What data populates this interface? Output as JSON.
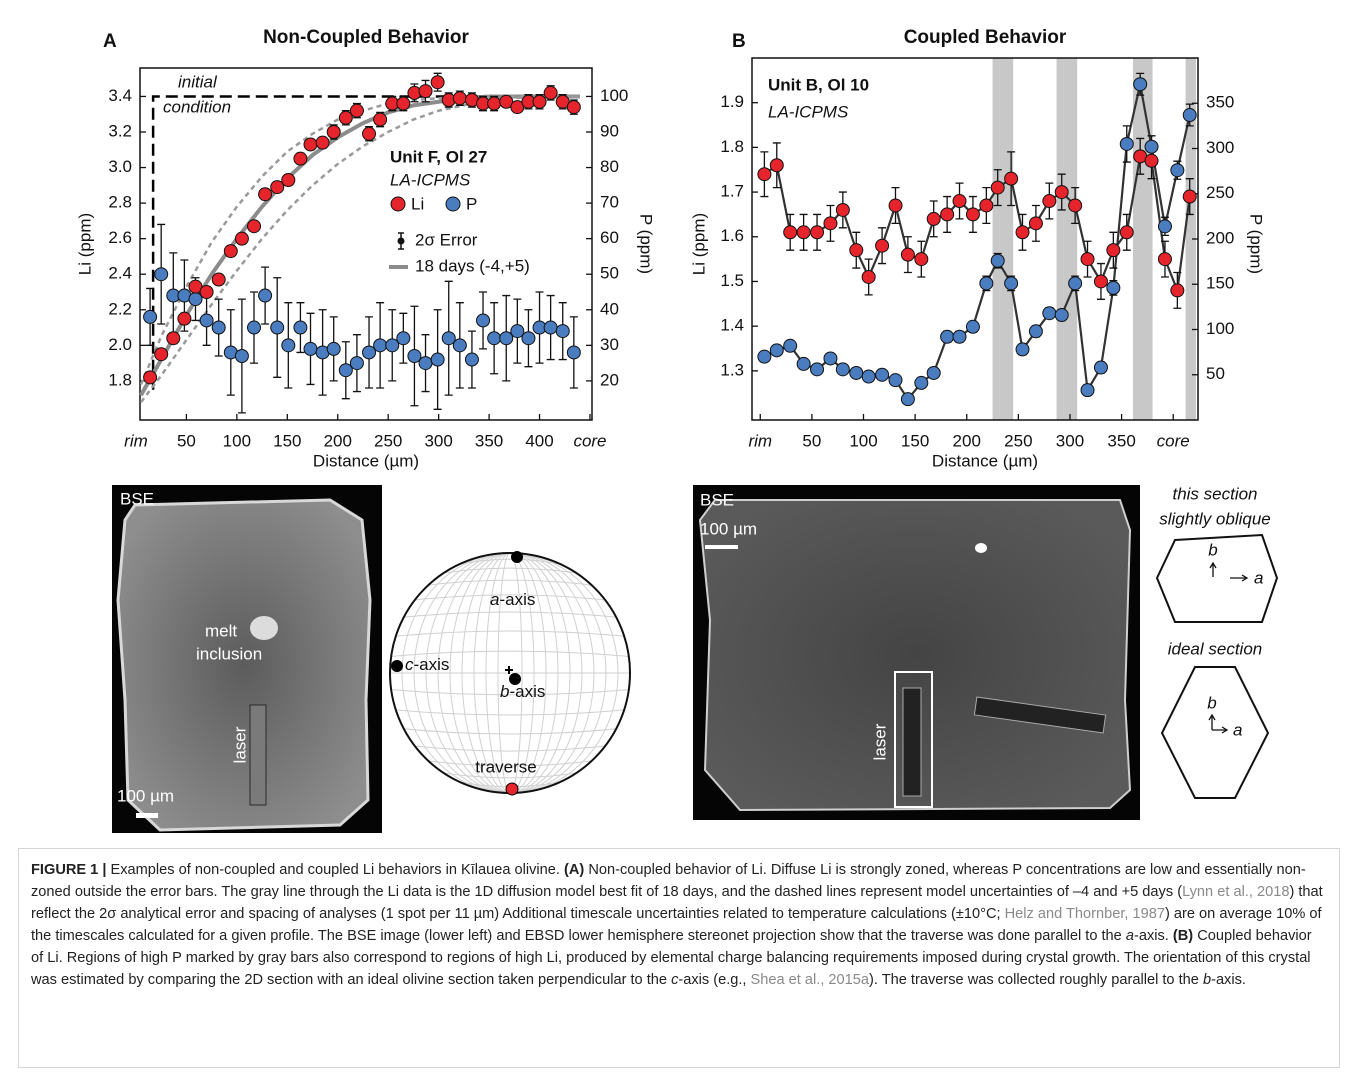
{
  "chart_data": [
    {
      "type": "scatter",
      "panel": "A",
      "title": "Non-Coupled Behavior",
      "xlabel": "Distance (µm)",
      "ylabel": "Li (ppm)",
      "y2label": "P (ppm)",
      "x": [
        14,
        25,
        37,
        48,
        59,
        70,
        82,
        94,
        105,
        117,
        128,
        140,
        151,
        163,
        173,
        185,
        196,
        208,
        219,
        231,
        242,
        254,
        265,
        276,
        287,
        299,
        310,
        321,
        333,
        344,
        355,
        367,
        378,
        389,
        400,
        411,
        423,
        434
      ],
      "xlim": [
        4,
        452
      ],
      "xticks": [
        {
          "value": 0,
          "label": "rim"
        },
        50,
        100,
        150,
        200,
        250,
        300,
        350,
        400,
        {
          "value": 450,
          "label": "core"
        }
      ],
      "ylim": [
        1.58,
        3.56
      ],
      "yticks": [
        1.8,
        {
          "value": 2,
          "label": "2.0"
        },
        2.2,
        2.4,
        2.6,
        2.8,
        {
          "value": 3,
          "label": "3.0"
        },
        3.2,
        3.4
      ],
      "y2lim": [
        9,
        108
      ],
      "y2ticks": [
        20,
        30,
        40,
        50,
        60,
        70,
        80,
        90,
        100
      ],
      "series": [
        {
          "name": "Li",
          "color": "#e5242b",
          "values": [
            1.82,
            1.95,
            2.04,
            2.15,
            2.33,
            2.3,
            2.37,
            2.53,
            2.6,
            2.67,
            2.85,
            2.89,
            2.93,
            3.05,
            3.13,
            3.14,
            3.2,
            3.28,
            3.32,
            3.19,
            3.27,
            3.36,
            3.36,
            3.42,
            3.43,
            3.48,
            3.38,
            3.39,
            3.38,
            3.36,
            3.36,
            3.37,
            3.34,
            3.37,
            3.37,
            3.42,
            3.37,
            3.34
          ],
          "errors": [
            0.02,
            0.02,
            0.03,
            0.03,
            0.02,
            0.02,
            0.02,
            0.03,
            0.03,
            0.02,
            0.03,
            0.03,
            0.03,
            0.03,
            0.03,
            0.03,
            0.04,
            0.04,
            0.04,
            0.04,
            0.04,
            0.04,
            0.04,
            0.05,
            0.06,
            0.05,
            0.04,
            0.04,
            0.04,
            0.04,
            0.04,
            0.03,
            0.03,
            0.04,
            0.04,
            0.04,
            0.04,
            0.04
          ]
        },
        {
          "name": "P",
          "color": "#4a7cc0",
          "axis": "y2",
          "values": [
            38,
            50,
            44,
            44,
            43,
            37,
            35,
            28,
            27,
            35,
            44,
            35,
            30,
            35,
            29,
            28,
            29,
            23,
            25,
            28,
            30,
            30,
            32,
            27,
            25,
            26,
            32,
            30,
            26,
            37,
            32,
            32,
            34,
            32,
            35,
            35,
            34,
            28
          ],
          "errors": [
            8,
            14,
            12,
            10,
            6,
            7,
            8,
            12,
            16,
            10,
            8,
            14,
            12,
            7,
            10,
            12,
            9,
            8,
            8,
            10,
            12,
            10,
            7,
            14,
            8,
            14,
            16,
            12,
            8,
            8,
            10,
            12,
            9,
            8,
            10,
            9,
            8,
            10
          ]
        }
      ],
      "annotations": [
        "Unit F, Ol 27",
        "LA-ICPMS"
      ],
      "legend": "right",
      "error_label": "2σ Error",
      "models": [
        {
          "name": "18 days (-4,+5)",
          "color": "#8c8c8c",
          "x": [
            5,
            25,
            50,
            75,
            100,
            125,
            150,
            175,
            200,
            225,
            250,
            275,
            300,
            325,
            350,
            400,
            440
          ],
          "values": [
            1.72,
            1.92,
            2.17,
            2.4,
            2.6,
            2.78,
            2.94,
            3.07,
            3.17,
            3.25,
            3.31,
            3.35,
            3.37,
            3.39,
            3.4,
            3.4,
            3.4
          ]
        },
        {
          "color": "#9a9a9a",
          "dash": true,
          "x": [
            5,
            25,
            50,
            75,
            100,
            125,
            150,
            175,
            200,
            225,
            250,
            275,
            300,
            325,
            350,
            400,
            440
          ],
          "values": [
            1.78,
            2.05,
            2.33,
            2.58,
            2.78,
            2.95,
            3.09,
            3.19,
            3.27,
            3.32,
            3.36,
            3.38,
            3.39,
            3.4,
            3.4,
            3.4,
            3.4
          ]
        },
        {
          "color": "#9a9a9a",
          "dash": true,
          "x": [
            5,
            25,
            50,
            75,
            100,
            125,
            150,
            175,
            200,
            225,
            250,
            275,
            300,
            325,
            350,
            400,
            440
          ],
          "values": [
            1.68,
            1.83,
            2.03,
            2.23,
            2.42,
            2.6,
            2.76,
            2.9,
            3.02,
            3.12,
            3.2,
            3.27,
            3.32,
            3.35,
            3.38,
            3.4,
            3.4
          ]
        }
      ],
      "initial_condition": {
        "label": [
          "initial",
          "condition"
        ],
        "color": "#000000",
        "x": [
          17,
          17,
          434
        ],
        "values": [
          1.75,
          3.4,
          3.4
        ]
      }
    },
    {
      "type": "line",
      "panel": "B",
      "title": "Coupled Behavior",
      "xlabel": "Distance (µm)",
      "ylabel": "Li (ppm)",
      "y2label": "P (ppm)",
      "x": [
        4,
        16,
        29,
        42,
        55,
        68,
        80,
        93,
        105,
        118,
        131,
        143,
        156,
        168,
        181,
        193,
        206,
        219,
        230,
        243,
        254,
        267,
        280,
        292,
        305,
        317,
        330,
        342,
        355,
        368,
        379,
        392,
        404,
        416
      ],
      "xlim": [
        -8,
        424
      ],
      "xticks": [
        {
          "value": 0,
          "label": "rim"
        },
        50,
        100,
        150,
        200,
        250,
        300,
        350,
        {
          "value": 400,
          "label": "core"
        }
      ],
      "ylim": [
        1.19,
        2.0
      ],
      "yticks": [
        1.3,
        1.4,
        1.5,
        1.6,
        1.7,
        1.8,
        1.9
      ],
      "y2lim": [
        0,
        400
      ],
      "y2ticks": [
        50,
        100,
        150,
        200,
        250,
        300,
        350
      ],
      "line_color": "#333333",
      "shaded_regions": [
        [
          225,
          245
        ],
        [
          287,
          307
        ],
        [
          361,
          380
        ],
        [
          412,
          422
        ]
      ],
      "shaded_color": "#c8c8c8",
      "series": [
        {
          "color": "#e5242b",
          "values": [
            1.74,
            1.76,
            1.61,
            1.61,
            1.61,
            1.63,
            1.66,
            1.57,
            1.51,
            1.58,
            1.67,
            1.56,
            1.55,
            1.64,
            1.65,
            1.68,
            1.65,
            1.67,
            1.71,
            1.73,
            1.61,
            1.63,
            1.68,
            1.7,
            1.67,
            1.55,
            1.5,
            1.57,
            1.61,
            1.78,
            1.77,
            1.55,
            1.48,
            1.69
          ],
          "errors": [
            0.05,
            0.05,
            0.04,
            0.04,
            0.04,
            0.04,
            0.04,
            0.04,
            0.04,
            0.04,
            0.04,
            0.04,
            0.04,
            0.04,
            0.04,
            0.04,
            0.04,
            0.04,
            0.04,
            0.06,
            0.04,
            0.04,
            0.04,
            0.04,
            0.04,
            0.04,
            0.04,
            0.04,
            0.04,
            0.04,
            0.04,
            0.04,
            0.04,
            0.04
          ]
        },
        {
          "color": "#4a7cc0",
          "axis": "y2",
          "values": [
            70,
            77,
            82,
            62,
            56,
            68,
            56,
            52,
            48,
            50,
            44,
            23,
            41,
            52,
            92,
            92,
            103,
            151,
            176,
            151,
            78,
            98,
            118,
            116,
            151,
            33,
            58,
            146,
            305,
            371,
            302,
            214,
            276,
            337
          ],
          "errors": [
            5,
            5,
            5,
            5,
            5,
            5,
            5,
            5,
            5,
            5,
            5,
            5,
            5,
            5,
            6,
            6,
            6,
            8,
            8,
            8,
            6,
            6,
            6,
            6,
            8,
            6,
            6,
            8,
            20,
            12,
            12,
            10,
            10,
            12
          ]
        }
      ],
      "annotations": [
        "Unit B, Ol 10",
        "LA-ICPMS"
      ]
    }
  ],
  "panel_a_image": {
    "label": "BSE",
    "inclusion": [
      "melt",
      "inclusion"
    ],
    "laser": "laser",
    "scale": "100 µm"
  },
  "stereonet": {
    "poles": [
      {
        "name": "a",
        "suffix": "-axis"
      },
      {
        "name": "c",
        "suffix": "-axis"
      },
      {
        "name": "b",
        "suffix": "-axis"
      }
    ],
    "traverse": "traverse"
  },
  "panel_b_image": {
    "label": "BSE",
    "scale": "100 µm",
    "laser": "laser"
  },
  "sections": [
    {
      "title": [
        "this section",
        "slightly oblique"
      ],
      "b": "b",
      "a": "a"
    },
    {
      "title": [
        "ideal section"
      ],
      "b": "b",
      "a": "a"
    }
  ],
  "caption": [
    {
      "text": "FIGURE 1 |",
      "style": "bold"
    },
    {
      "text": " Examples of non-coupled and coupled Li behaviors in Kīlauea olivine. "
    },
    {
      "text": "(A)",
      "style": "bold"
    },
    {
      "text": " Non-coupled behavior of Li. Diffuse Li is strongly zoned, whereas P concentrations are low and essentially non-zoned outside the error bars. The gray line through the Li data is the 1D diffusion model best fit of 18 days, and the dashed lines represent model uncertainties of –4 and +5 days ("
    },
    {
      "text": "Lynn et al., 2018",
      "style": "link"
    },
    {
      "text": ") that reflect the 2σ analytical error and spacing of analyses (1 spot per 11 µm) Additional timescale uncertainties related to temperature calculations (±10°C; "
    },
    {
      "text": "Helz and Thornber, 1987",
      "style": "link"
    },
    {
      "text": ") are on average 10% of the timescales calculated for a given profile. The BSE image (lower left) and EBSD lower hemisphere stereonet projection show that the traverse was done parallel to the "
    },
    {
      "text": "a",
      "style": "italic"
    },
    {
      "text": "-axis. "
    },
    {
      "text": "(B)",
      "style": "bold"
    },
    {
      "text": " Coupled behavior of Li. Regions of high P marked by gray bars also correspond to regions of high Li, produced by elemental charge balancing requirements imposed during crystal growth. The orientation of this crystal was estimated by comparing the 2D section with an ideal olivine section taken perpendicular to the "
    },
    {
      "text": "c",
      "style": "italic"
    },
    {
      "text": "-axis (e.g., "
    },
    {
      "text": "Shea et al., 2015a",
      "style": "link"
    },
    {
      "text": "). The traverse was collected roughly parallel to the "
    },
    {
      "text": "b",
      "style": "italic"
    },
    {
      "text": "-axis."
    }
  ]
}
